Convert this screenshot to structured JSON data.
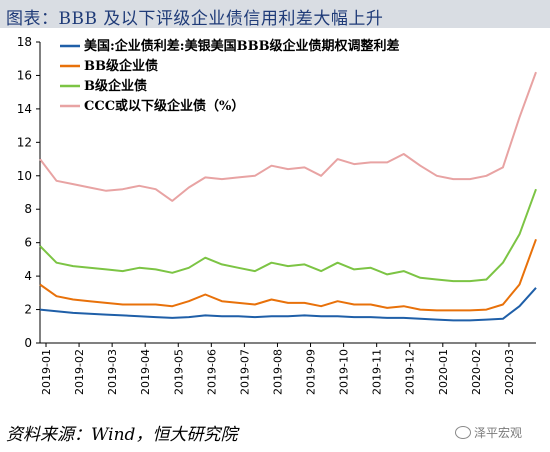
{
  "header": {
    "title": "图表：BBB 及以下评级企业债信用利差大幅上升"
  },
  "footer": {
    "source": "资料来源：Wind，恒大研究院",
    "watermark": "泽平宏观"
  },
  "chart_data": {
    "type": "line",
    "title": "",
    "xlabel": "",
    "ylabel": "",
    "ylim": [
      0,
      18
    ],
    "yticks": [
      0,
      2,
      4,
      6,
      8,
      10,
      12,
      14,
      16,
      18
    ],
    "grid": false,
    "legend_position": "top-left",
    "x_tick_labels": [
      "2019-01",
      "2019-02",
      "2019-03",
      "2019-04",
      "2019-05",
      "2019-06",
      "2019-07",
      "2019-08",
      "2019-09",
      "2019-10",
      "2019-11",
      "2019-12",
      "2020-01",
      "2020-02",
      "2020-03"
    ],
    "x": [
      "2019-01",
      "2019-01b",
      "2019-02",
      "2019-02b",
      "2019-03",
      "2019-03b",
      "2019-04",
      "2019-04b",
      "2019-05",
      "2019-05b",
      "2019-06",
      "2019-06b",
      "2019-07",
      "2019-07b",
      "2019-08",
      "2019-08b",
      "2019-09",
      "2019-09b",
      "2019-10",
      "2019-10b",
      "2019-11",
      "2019-11b",
      "2019-12",
      "2019-12b",
      "2020-01",
      "2020-01b",
      "2020-02",
      "2020-02b",
      "2020-03",
      "2020-03b",
      "2020-03c"
    ],
    "series": [
      {
        "name": "美国:企业债利差:美银美国BBB级企业债期权调整利差",
        "color": "#1f5fa8",
        "values": [
          2.0,
          1.9,
          1.8,
          1.75,
          1.7,
          1.65,
          1.6,
          1.55,
          1.5,
          1.55,
          1.65,
          1.6,
          1.6,
          1.55,
          1.6,
          1.6,
          1.65,
          1.6,
          1.6,
          1.55,
          1.55,
          1.5,
          1.5,
          1.45,
          1.4,
          1.35,
          1.35,
          1.4,
          1.45,
          2.2,
          3.3
        ]
      },
      {
        "name": "BB级企业债",
        "color": "#e8710a",
        "values": [
          3.5,
          2.8,
          2.6,
          2.5,
          2.4,
          2.3,
          2.3,
          2.3,
          2.2,
          2.5,
          2.9,
          2.5,
          2.4,
          2.3,
          2.6,
          2.4,
          2.4,
          2.2,
          2.5,
          2.3,
          2.3,
          2.1,
          2.2,
          2.0,
          1.95,
          1.95,
          1.95,
          2.0,
          2.3,
          3.5,
          6.2
        ]
      },
      {
        "name": "B级企业债",
        "color": "#7cc444",
        "values": [
          5.8,
          4.8,
          4.6,
          4.5,
          4.4,
          4.3,
          4.5,
          4.4,
          4.2,
          4.5,
          5.1,
          4.7,
          4.5,
          4.3,
          4.8,
          4.6,
          4.7,
          4.3,
          4.8,
          4.4,
          4.5,
          4.1,
          4.3,
          3.9,
          3.8,
          3.7,
          3.7,
          3.8,
          4.8,
          6.5,
          9.2
        ]
      },
      {
        "name": "CCC或以下级企业债（%）",
        "color": "#e8a3a3",
        "values": [
          11.0,
          9.7,
          9.5,
          9.3,
          9.1,
          9.2,
          9.4,
          9.2,
          8.5,
          9.3,
          9.9,
          9.8,
          9.9,
          10.0,
          10.6,
          10.4,
          10.5,
          10.0,
          11.0,
          10.7,
          10.8,
          10.8,
          11.3,
          10.6,
          10.0,
          9.8,
          9.8,
          10.0,
          10.5,
          13.5,
          16.2
        ]
      }
    ]
  }
}
